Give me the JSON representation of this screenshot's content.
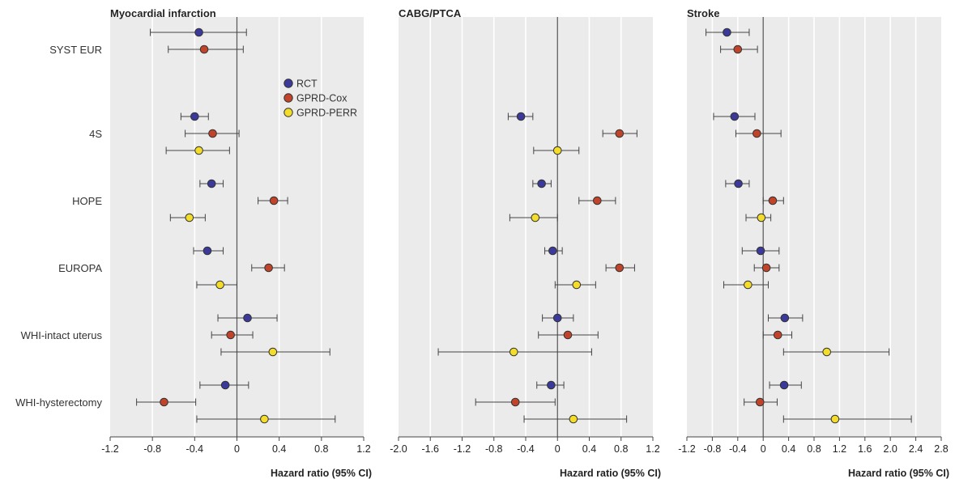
{
  "chart_data": [
    {
      "type": "forest",
      "title": "Myocardial infarction",
      "xlabel": "Hazard ratio (95% CI)",
      "xlim": [
        -1.2,
        1.2
      ],
      "xticks": [
        "-1.2",
        "-0.8",
        "-0.4",
        "0",
        "0.4",
        "0.8",
        "1.2"
      ],
      "grid": true,
      "legend_position": "top-right",
      "categories": [
        "SYST EUR",
        "4S",
        "HOPE",
        "EUROPA",
        "WHI-intact uterus",
        "WHI-hysterectomy"
      ],
      "series": [
        {
          "name": "RCT",
          "color": "#3b3a9a",
          "points": [
            {
              "est": -0.36,
              "lo": -0.82,
              "hi": 0.09
            },
            {
              "est": -0.4,
              "lo": -0.53,
              "hi": -0.27
            },
            {
              "est": -0.24,
              "lo": -0.35,
              "hi": -0.13
            },
            {
              "est": -0.28,
              "lo": -0.41,
              "hi": -0.13
            },
            {
              "est": 0.1,
              "lo": -0.18,
              "hi": 0.38
            },
            {
              "est": -0.11,
              "lo": -0.35,
              "hi": 0.11
            }
          ]
        },
        {
          "name": "GPRD-Cox",
          "color": "#c0432a",
          "points": [
            {
              "est": -0.31,
              "lo": -0.65,
              "hi": 0.06
            },
            {
              "est": -0.23,
              "lo": -0.49,
              "hi": 0.02
            },
            {
              "est": 0.35,
              "lo": 0.2,
              "hi": 0.48
            },
            {
              "est": 0.3,
              "lo": 0.14,
              "hi": 0.45
            },
            {
              "est": -0.06,
              "lo": -0.24,
              "hi": 0.15
            },
            {
              "est": -0.69,
              "lo": -0.95,
              "hi": -0.39
            }
          ]
        },
        {
          "name": "GPRD-PERR",
          "color": "#f3dd2a",
          "points": [
            {
              "est": -0.36,
              "lo": -0.67,
              "hi": -0.07
            },
            {
              "est": -0.45,
              "lo": -0.63,
              "hi": -0.3
            },
            {
              "est": -0.16,
              "lo": -0.38,
              "hi": 0.0
            },
            {
              "est": 0.34,
              "lo": -0.15,
              "hi": 0.88
            },
            {
              "est": 0.26,
              "lo": -0.38,
              "hi": 0.93
            }
          ],
          "rows": [
            1,
            2,
            3,
            4,
            5
          ]
        }
      ]
    },
    {
      "type": "forest",
      "title": "CABG/PTCA",
      "xlabel": "Hazard ratio (95% CI)",
      "xlim": [
        -2.0,
        1.2
      ],
      "xticks": [
        "-2.0",
        "-1.6",
        "-1.2",
        "-0.8",
        "-0.4",
        "0",
        "0.4",
        "0.8",
        "1.2"
      ],
      "grid": true,
      "series": [
        {
          "name": "RCT",
          "color": "#3b3a9a",
          "points": [
            {
              "est": -0.46,
              "lo": -0.62,
              "hi": -0.31
            },
            {
              "est": -0.2,
              "lo": -0.31,
              "hi": -0.08
            },
            {
              "est": -0.06,
              "lo": -0.16,
              "hi": 0.06
            },
            {
              "est": 0.0,
              "lo": -0.19,
              "hi": 0.2
            },
            {
              "est": -0.08,
              "lo": -0.26,
              "hi": 0.08
            }
          ],
          "rows": [
            1,
            2,
            3,
            4,
            5
          ]
        },
        {
          "name": "GPRD-Cox",
          "color": "#c0432a",
          "points": [
            {
              "est": 0.78,
              "lo": 0.57,
              "hi": 1.0
            },
            {
              "est": 0.5,
              "lo": 0.27,
              "hi": 0.73
            },
            {
              "est": 0.78,
              "lo": 0.61,
              "hi": 0.97
            },
            {
              "est": 0.13,
              "lo": -0.24,
              "hi": 0.51
            },
            {
              "est": -0.53,
              "lo": -1.03,
              "hi": -0.03
            }
          ],
          "rows": [
            1,
            2,
            3,
            4,
            5
          ]
        },
        {
          "name": "GPRD-PERR",
          "color": "#f3dd2a",
          "points": [
            {
              "est": 0.0,
              "lo": -0.3,
              "hi": 0.27
            },
            {
              "est": -0.28,
              "lo": -0.6,
              "hi": 0.0
            },
            {
              "est": 0.24,
              "lo": -0.03,
              "hi": 0.48
            },
            {
              "est": -0.55,
              "lo": -1.5,
              "hi": 0.43
            },
            {
              "est": 0.2,
              "lo": -0.42,
              "hi": 0.87
            }
          ],
          "rows": [
            1,
            2,
            3,
            4,
            5
          ]
        }
      ]
    },
    {
      "type": "forest",
      "title": "Stroke",
      "xlabel": "Hazard ratio (95% CI)",
      "xlim": [
        -1.2,
        2.8
      ],
      "xticks": [
        "-1.2",
        "-0.8",
        "-0.4",
        "0",
        "0.4",
        "0.8",
        "1.2",
        "1.6",
        "2.0",
        "2.4",
        "2.8"
      ],
      "grid": true,
      "series": [
        {
          "name": "RCT",
          "color": "#3b3a9a",
          "points": [
            {
              "est": -0.57,
              "lo": -0.9,
              "hi": -0.22
            },
            {
              "est": -0.45,
              "lo": -0.78,
              "hi": -0.13
            },
            {
              "est": -0.39,
              "lo": -0.59,
              "hi": -0.22
            },
            {
              "est": -0.04,
              "lo": -0.33,
              "hi": 0.25
            },
            {
              "est": 0.34,
              "lo": 0.08,
              "hi": 0.62
            },
            {
              "est": 0.33,
              "lo": 0.1,
              "hi": 0.6
            }
          ]
        },
        {
          "name": "GPRD-Cox",
          "color": "#c0432a",
          "points": [
            {
              "est": -0.4,
              "lo": -0.67,
              "hi": -0.09
            },
            {
              "est": -0.1,
              "lo": -0.43,
              "hi": 0.28
            },
            {
              "est": 0.15,
              "lo": 0.0,
              "hi": 0.32
            },
            {
              "est": 0.05,
              "lo": -0.14,
              "hi": 0.25
            },
            {
              "est": 0.23,
              "lo": 0.0,
              "hi": 0.45
            },
            {
              "est": -0.05,
              "lo": -0.3,
              "hi": 0.22
            }
          ]
        },
        {
          "name": "GPRD-PERR",
          "color": "#f3dd2a",
          "points": [
            {
              "est": -0.03,
              "lo": -0.27,
              "hi": 0.12
            },
            {
              "est": -0.24,
              "lo": -0.62,
              "hi": 0.08
            },
            {
              "est": 1.0,
              "lo": 0.32,
              "hi": 1.98
            },
            {
              "est": 1.13,
              "lo": 0.32,
              "hi": 2.33
            }
          ],
          "rows": [
            2,
            3,
            4,
            5
          ]
        }
      ]
    }
  ]
}
